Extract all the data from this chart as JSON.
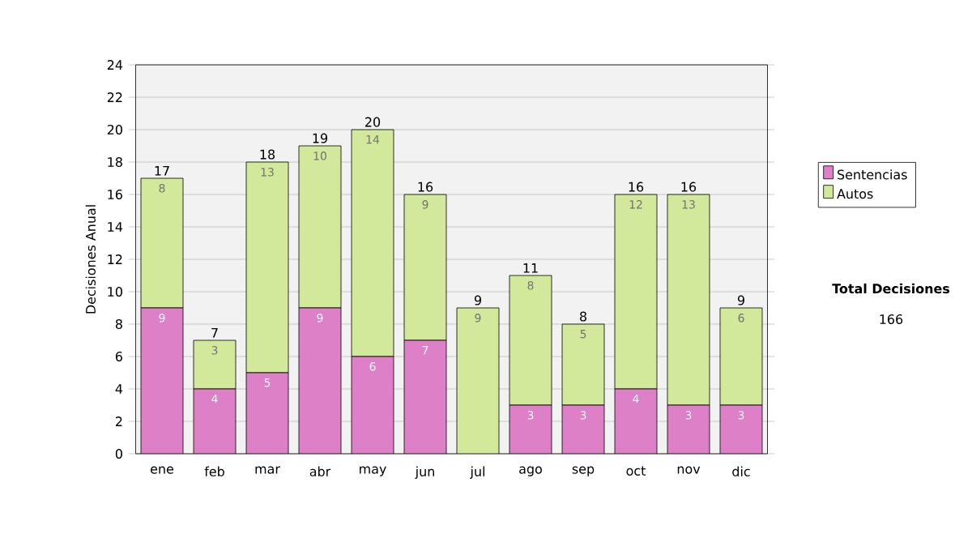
{
  "chart_data": {
    "type": "bar",
    "stacked": true,
    "ylabel": "Decisiones Anual",
    "categories": [
      "ene",
      "feb",
      "mar",
      "abr",
      "may",
      "jun",
      "jul",
      "ago",
      "sep",
      "oct",
      "nov",
      "dic"
    ],
    "series": [
      {
        "name": "Sentencias",
        "color": "#dd80c8",
        "values": [
          9,
          4,
          5,
          9,
          6,
          7,
          0,
          3,
          3,
          4,
          3,
          3
        ],
        "value_labels": [
          "9",
          "4",
          "5",
          "9",
          "6",
          "7",
          null,
          "3",
          "3",
          "4",
          "3",
          "3"
        ]
      },
      {
        "name": "Autos",
        "color": "#d2e89a",
        "values": [
          8,
          3,
          13,
          10,
          14,
          9,
          9,
          8,
          5,
          12,
          13,
          6
        ],
        "value_labels": [
          "8",
          "3",
          "13",
          "10",
          "14",
          "9",
          "9",
          "8",
          "5",
          "12",
          "13",
          "6"
        ]
      }
    ],
    "totals": [
      "17",
      "7",
      "18",
      "19",
      "20",
      "16",
      "9",
      "11",
      "8",
      "16",
      "16",
      "9"
    ],
    "ylim": [
      0,
      24
    ],
    "yticks": [
      0,
      2,
      4,
      6,
      8,
      10,
      12,
      14,
      16,
      18,
      20,
      22,
      24
    ],
    "grid": "y",
    "legend": "right",
    "annotations": [
      "Total Decisiones",
      "166"
    ]
  }
}
